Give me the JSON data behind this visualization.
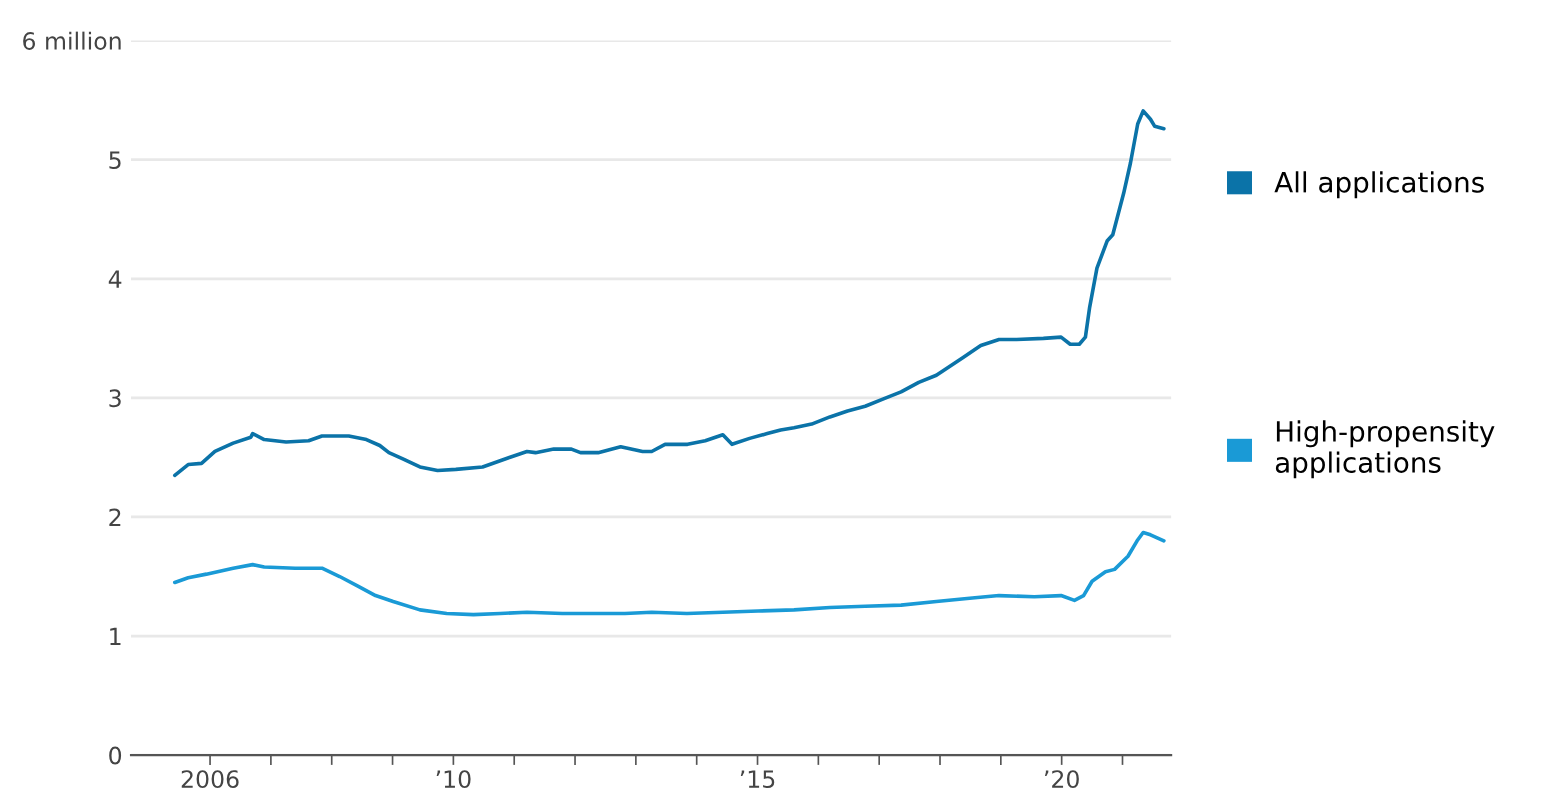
{
  "chart_data": {
    "type": "line",
    "xlim": [
      2004.7,
      2021.8
    ],
    "xticks": [
      {
        "value": 2006,
        "label": "2006"
      },
      {
        "value": 2007,
        "label": null
      },
      {
        "value": 2008,
        "label": null
      },
      {
        "value": 2009,
        "label": null
      },
      {
        "value": 2010,
        "label": "’10"
      },
      {
        "value": 2011,
        "label": null
      },
      {
        "value": 2012,
        "label": null
      },
      {
        "value": 2013,
        "label": null
      },
      {
        "value": 2014,
        "label": null
      },
      {
        "value": 2015,
        "label": "’15"
      },
      {
        "value": 2016,
        "label": null
      },
      {
        "value": 2017,
        "label": null
      },
      {
        "value": 2018,
        "label": null
      },
      {
        "value": 2019,
        "label": null
      },
      {
        "value": 2020,
        "label": "’20"
      },
      {
        "value": 2021,
        "label": null
      }
    ],
    "ylim": [
      0,
      6
    ],
    "yticks": [
      0,
      1,
      2,
      3,
      4,
      5,
      {
        "value": 6,
        "label": "6 million"
      }
    ],
    "grid": "y",
    "legend": "right",
    "line_style": "solid",
    "series": [
      {
        "name": "All applications",
        "color": "#0b73a8",
        "x": [
          2005.42,
          2005.64,
          2005.86,
          2006.08,
          2006.38,
          2006.67,
          2006.7,
          2006.89,
          2007.25,
          2007.62,
          2007.84,
          2008.28,
          2008.57,
          2008.79,
          2008.94,
          2009.16,
          2009.45,
          2009.74,
          2010.04,
          2010.48,
          2010.92,
          2011.21,
          2011.35,
          2011.65,
          2011.94,
          2012.09,
          2012.38,
          2012.75,
          2013.11,
          2013.26,
          2013.48,
          2013.85,
          2014.14,
          2014.43,
          2014.58,
          2014.87,
          2015.16,
          2015.38,
          2015.6,
          2015.89,
          2016.19,
          2016.48,
          2016.77,
          2017.06,
          2017.36,
          2017.65,
          2017.94,
          2018.38,
          2018.67,
          2018.97,
          2019.26,
          2019.7,
          2019.99,
          2020.14,
          2020.29,
          2020.39,
          2020.46,
          2020.58,
          2020.75,
          2020.84,
          2021.02,
          2021.13,
          2021.25,
          2021.34,
          2021.46,
          2021.53,
          2021.68
        ],
        "values": [
          2.35,
          2.44,
          2.45,
          2.55,
          2.62,
          2.67,
          2.7,
          2.65,
          2.63,
          2.64,
          2.68,
          2.68,
          2.65,
          2.6,
          2.54,
          2.49,
          2.42,
          2.39,
          2.4,
          2.42,
          2.5,
          2.55,
          2.54,
          2.57,
          2.57,
          2.54,
          2.54,
          2.59,
          2.55,
          2.55,
          2.61,
          2.61,
          2.64,
          2.69,
          2.61,
          2.66,
          2.7,
          2.73,
          2.75,
          2.78,
          2.84,
          2.89,
          2.93,
          2.99,
          3.05,
          3.13,
          3.19,
          3.34,
          3.44,
          3.49,
          3.49,
          3.5,
          3.51,
          3.45,
          3.45,
          3.51,
          3.76,
          4.09,
          4.32,
          4.37,
          4.72,
          4.97,
          5.3,
          5.41,
          5.34,
          5.28,
          5.26
        ]
      },
      {
        "name": "High-propensity\napplications",
        "color": "#1a9ad6",
        "x": [
          2005.42,
          2005.64,
          2005.94,
          2006.38,
          2006.7,
          2006.89,
          2007.4,
          2007.84,
          2008.13,
          2008.43,
          2008.72,
          2009.01,
          2009.45,
          2009.89,
          2010.33,
          2010.77,
          2011.21,
          2011.79,
          2012.38,
          2012.82,
          2013.26,
          2013.84,
          2014.43,
          2015.01,
          2015.6,
          2016.19,
          2016.77,
          2017.36,
          2017.94,
          2018.53,
          2018.97,
          2019.55,
          2019.99,
          2020.21,
          2020.36,
          2020.5,
          2020.72,
          2020.87,
          2021.09,
          2021.24,
          2021.34,
          2021.46,
          2021.68
        ],
        "values": [
          1.45,
          1.49,
          1.52,
          1.57,
          1.6,
          1.58,
          1.57,
          1.57,
          1.5,
          1.42,
          1.34,
          1.29,
          1.22,
          1.19,
          1.18,
          1.19,
          1.2,
          1.19,
          1.19,
          1.19,
          1.2,
          1.19,
          1.2,
          1.21,
          1.22,
          1.24,
          1.25,
          1.26,
          1.29,
          1.32,
          1.34,
          1.33,
          1.34,
          1.3,
          1.34,
          1.46,
          1.54,
          1.56,
          1.67,
          1.8,
          1.87,
          1.85,
          1.8
        ]
      }
    ]
  }
}
